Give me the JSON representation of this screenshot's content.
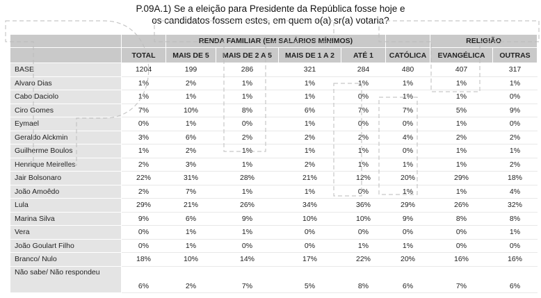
{
  "title": {
    "line1": "P.09A.1) Se a eleição para Presidente da República fosse hoje e",
    "line2": "os candidatos fossem estes, em quem o(a) sr(a) votaria?"
  },
  "table": {
    "groups": {
      "renda": "RENDA FAMILIAR (EM SALÁRIOS MÍNIMOS)",
      "religiao": "RELIGIÃO"
    },
    "columns": [
      "TOTAL",
      "MAIS DE 5",
      "MAIS DE 2 A 5",
      "MAIS DE 1 A 2",
      "ATÉ 1",
      "CATÓLICA",
      "EVANGÉLICA",
      "OUTRAS"
    ],
    "rows": [
      {
        "label": "BASE",
        "values": [
          "1204",
          "199",
          "286",
          "321",
          "284",
          "480",
          "407",
          "317"
        ]
      },
      {
        "label": "Alvaro Dias",
        "values": [
          "1%",
          "2%",
          "1%",
          "1%",
          "1%",
          "1%",
          "1%",
          "1%"
        ]
      },
      {
        "label": "Cabo Daciolo",
        "values": [
          "1%",
          "1%",
          "1%",
          "1%",
          "0%",
          "1%",
          "1%",
          "0%"
        ]
      },
      {
        "label": "Ciro Gomes",
        "values": [
          "7%",
          "10%",
          "8%",
          "6%",
          "7%",
          "7%",
          "5%",
          "9%"
        ]
      },
      {
        "label": "Eymael",
        "values": [
          "0%",
          "1%",
          "0%",
          "1%",
          "0%",
          "0%",
          "1%",
          "0%"
        ]
      },
      {
        "label": "Geraldo Alckmin",
        "values": [
          "3%",
          "6%",
          "2%",
          "2%",
          "2%",
          "4%",
          "2%",
          "2%"
        ]
      },
      {
        "label": "Guilherme Boulos",
        "values": [
          "1%",
          "2%",
          "1%",
          "1%",
          "1%",
          "0%",
          "1%",
          "1%"
        ]
      },
      {
        "label": "Henrique Meirelles",
        "values": [
          "2%",
          "3%",
          "1%",
          "2%",
          "1%",
          "1%",
          "1%",
          "2%"
        ]
      },
      {
        "label": "Jair Bolsonaro",
        "values": [
          "22%",
          "31%",
          "28%",
          "21%",
          "12%",
          "20%",
          "29%",
          "18%"
        ]
      },
      {
        "label": "João Amoêdo",
        "values": [
          "2%",
          "7%",
          "1%",
          "1%",
          "0%",
          "1%",
          "1%",
          "4%"
        ]
      },
      {
        "label": "Lula",
        "values": [
          "29%",
          "21%",
          "26%",
          "34%",
          "36%",
          "29%",
          "26%",
          "32%"
        ]
      },
      {
        "label": "Marina Silva",
        "values": [
          "9%",
          "6%",
          "9%",
          "10%",
          "10%",
          "9%",
          "8%",
          "8%"
        ]
      },
      {
        "label": "Vera",
        "values": [
          "0%",
          "1%",
          "1%",
          "0%",
          "0%",
          "0%",
          "0%",
          "1%"
        ]
      },
      {
        "label": "João Goulart Filho",
        "values": [
          "0%",
          "1%",
          "0%",
          "0%",
          "1%",
          "1%",
          "0%",
          "0%"
        ]
      },
      {
        "label": "Branco/ Nulo",
        "values": [
          "18%",
          "10%",
          "14%",
          "17%",
          "22%",
          "20%",
          "16%",
          "16%"
        ]
      },
      {
        "label": "Não sabe/ Não respondeu",
        "values": [
          "6%",
          "2%",
          "7%",
          "5%",
          "8%",
          "6%",
          "7%",
          "6%"
        ]
      }
    ]
  },
  "colors": {
    "header_bg": "#c9c9c9",
    "label_bg": "#e4e4e4",
    "watermark": "#bdbdbd"
  }
}
